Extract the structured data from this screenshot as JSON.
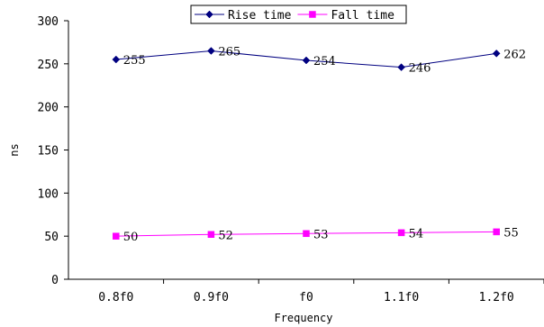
{
  "chart_data": {
    "type": "line",
    "title": "",
    "xlabel": "Frequency",
    "ylabel": "ns",
    "categories": [
      "0.8f0",
      "0.9f0",
      "f0",
      "1.1f0",
      "1.2f0"
    ],
    "ylim": [
      0,
      300
    ],
    "yticks": [
      0,
      50,
      100,
      150,
      200,
      250,
      300
    ],
    "grid": false,
    "legend_position": "top-center",
    "series": [
      {
        "name": "Rise time",
        "values": [
          255,
          265,
          254,
          246,
          262
        ],
        "labels": [
          "255",
          "265",
          "254",
          "246",
          "262"
        ],
        "color": "#000080",
        "marker": "diamond"
      },
      {
        "name": "Fall time",
        "values": [
          50,
          52,
          53,
          54,
          55
        ],
        "labels": [
          "50",
          "52",
          "53",
          "54",
          "55"
        ],
        "color": "#FF00FF",
        "marker": "square"
      }
    ]
  }
}
